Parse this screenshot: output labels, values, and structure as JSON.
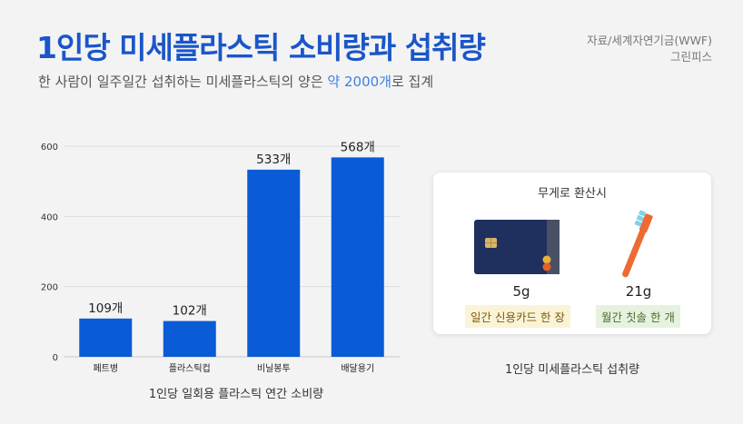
{
  "header": {
    "title": "1인당 미세플라스틱 소비량과 섭취량",
    "subtitle_before": "한 사람이 일주일간 섭취하는 미세플라스틱의 양은 ",
    "subtitle_highlight": "약 2000개",
    "subtitle_after": "로 집계",
    "source_line1": "자료/세계자연기금(WWF)",
    "source_line2": "그린피스"
  },
  "chart_data": {
    "type": "bar",
    "categories": [
      "페트병",
      "플라스틱컵",
      "비닐봉투",
      "배달용기"
    ],
    "values": [
      109,
      102,
      533,
      568
    ],
    "data_labels": [
      "109개",
      "102개",
      "533개",
      "568개"
    ],
    "yticks": [
      0,
      200,
      400,
      600
    ],
    "ylim": [
      0,
      600
    ],
    "grid": true,
    "bar_color": "#0a5bd6",
    "xlabel": "1인당 일회용 플라스틱 연간 소비량"
  },
  "card": {
    "title": "무게로 환산시",
    "item1": {
      "icon": "credit-card-icon",
      "weight": "5g",
      "label": "일간 신용카드 한 장"
    },
    "item2": {
      "icon": "toothbrush-icon",
      "weight": "21g",
      "label": "월간 칫솔 한 개"
    },
    "caption": "1인당 미세플라스틱 섭취량"
  },
  "colors": {
    "title": "#1a56c9",
    "highlight": "#3b82e0",
    "background": "#f3f3f3",
    "tag_yellow": "#fbf3d6",
    "tag_green": "#e6f2df"
  }
}
